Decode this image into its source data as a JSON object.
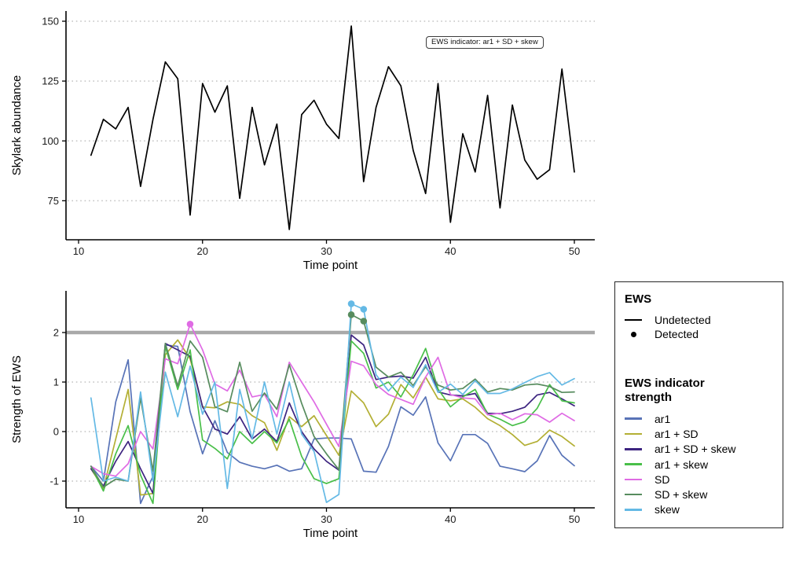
{
  "figure": {
    "background": "#FFFFFF"
  },
  "annotation": {
    "label": "EWS indicator: ar1 + SD + skew"
  },
  "legend": {
    "ews": {
      "title": "EWS",
      "items": [
        {
          "label": "Undetected",
          "swatch": "line",
          "color": "#000000"
        },
        {
          "label": "Detected",
          "swatch": "dot",
          "color": "#000000"
        }
      ]
    },
    "indicator": {
      "title": "EWS indicator strength",
      "items": [
        {
          "label": "ar1",
          "color": "#5873B7"
        },
        {
          "label": "ar1 + SD",
          "color": "#B3AF34"
        },
        {
          "label": "ar1 + SD + skew",
          "color": "#3D2480"
        },
        {
          "label": "ar1 + skew",
          "color": "#49BF49"
        },
        {
          "label": "SD",
          "color": "#DF6BE4"
        },
        {
          "label": "SD + skew",
          "color": "#578C5E"
        },
        {
          "label": "skew",
          "color": "#64B9E5"
        }
      ]
    }
  },
  "styles": {
    "grid_color": "#C3C3C3",
    "axis_color": "#000000",
    "tick_label_color": "#1A1A1A",
    "threshold_color": "#A9A9A9"
  },
  "chart_data": [
    {
      "id": "skylark-abundance",
      "type": "line",
      "title": "",
      "xlabel": "Time point",
      "ylabel": "Skylark abundance",
      "grid": "dotted-horizontal",
      "annotation": "EWS indicator: ar1 + SD + skew",
      "line_color": "#000000",
      "xticks": [
        10,
        20,
        30,
        40,
        50
      ],
      "yticks": [
        75,
        100,
        125,
        150
      ],
      "xlim": [
        9,
        51.5
      ],
      "ylim": [
        61,
        152
      ],
      "x": [
        11,
        12,
        13,
        14,
        15,
        16,
        17,
        18,
        19,
        20,
        21,
        22,
        23,
        24,
        25,
        26,
        27,
        28,
        29,
        30,
        31,
        32,
        33,
        34,
        35,
        36,
        37,
        38,
        39,
        40,
        41,
        42,
        43,
        44,
        45,
        46,
        47,
        48,
        49,
        50
      ],
      "values": [
        94,
        109,
        105,
        114,
        81,
        109,
        133,
        126,
        69,
        124,
        112,
        123,
        76,
        114,
        90,
        107,
        63,
        111,
        117,
        107,
        101,
        148,
        83,
        114,
        131,
        123,
        96,
        78,
        124,
        66,
        103,
        87,
        119,
        72,
        115,
        92,
        84,
        88,
        130,
        87
      ]
    },
    {
      "id": "ews-strength",
      "type": "line",
      "title": "",
      "xlabel": "Time point",
      "ylabel": "Strength of EWS",
      "grid": "dotted-horizontal",
      "threshold": 2,
      "xticks": [
        10,
        20,
        30,
        40,
        50
      ],
      "yticks": [
        -1,
        0,
        1,
        2
      ],
      "xlim": [
        9,
        51.5
      ],
      "ylim": [
        -1.65,
        2.75
      ],
      "x": [
        11,
        12,
        13,
        14,
        15,
        16,
        17,
        18,
        19,
        20,
        21,
        22,
        23,
        24,
        25,
        26,
        27,
        28,
        29,
        30,
        31,
        32,
        33,
        34,
        35,
        36,
        37,
        38,
        39,
        40,
        41,
        42,
        43,
        44,
        45,
        46,
        47,
        48,
        49,
        50
      ],
      "series": [
        {
          "name": "ar1",
          "color": "#5873B7",
          "values": [
            -0.7,
            -1.0,
            0.6,
            1.45,
            -1.45,
            -0.9,
            1.75,
            1.72,
            0.4,
            -0.45,
            0.22,
            -0.42,
            -0.62,
            -0.7,
            -0.75,
            -0.68,
            -0.8,
            -0.75,
            -0.15,
            -0.13,
            -0.13,
            -0.15,
            -0.8,
            -0.82,
            -0.3,
            0.5,
            0.33,
            0.7,
            -0.23,
            -0.59,
            -0.06,
            -0.06,
            -0.24,
            -0.7,
            -0.75,
            -0.81,
            -0.59,
            -0.08,
            -0.48,
            -0.69
          ]
        },
        {
          "name": "ar1 + SD",
          "color": "#B3AF34",
          "values": [
            -0.75,
            -1.15,
            -0.15,
            0.85,
            -1.28,
            -1.25,
            1.55,
            1.85,
            1.47,
            0.5,
            0.48,
            0.6,
            0.55,
            0.32,
            0.18,
            -0.38,
            0.3,
            0.1,
            0.32,
            -0.08,
            -0.48,
            0.82,
            0.58,
            0.1,
            0.35,
            0.95,
            0.68,
            1.1,
            0.66,
            0.62,
            0.66,
            0.49,
            0.26,
            0.12,
            -0.06,
            -0.28,
            -0.2,
            0.03,
            -0.1,
            -0.29
          ]
        },
        {
          "name": "ar1 + SD + skew",
          "color": "#3D2480",
          "values": [
            -0.75,
            -1.1,
            -0.6,
            -0.2,
            -0.75,
            -1.25,
            1.78,
            1.65,
            1.52,
            0.5,
            0.05,
            -0.05,
            0.3,
            -0.15,
            0.05,
            -0.2,
            0.58,
            0.0,
            -0.35,
            -0.6,
            -0.78,
            1.95,
            1.75,
            1.05,
            1.1,
            1.12,
            1.08,
            1.5,
            0.8,
            0.74,
            0.72,
            0.77,
            0.37,
            0.36,
            0.41,
            0.49,
            0.74,
            0.79,
            0.66,
            0.52
          ]
        },
        {
          "name": "ar1 + skew",
          "color": "#49BF49",
          "values": [
            -0.7,
            -1.2,
            -0.45,
            0.12,
            -0.88,
            -1.45,
            1.72,
            0.85,
            1.65,
            -0.17,
            -0.34,
            -0.55,
            0.0,
            -0.24,
            0.0,
            -0.23,
            0.25,
            -0.5,
            -0.95,
            -1.05,
            -0.95,
            1.83,
            1.58,
            0.88,
            1.0,
            0.7,
            1.15,
            1.68,
            0.86,
            0.5,
            0.7,
            0.85,
            0.35,
            0.25,
            0.12,
            0.2,
            0.47,
            0.95,
            0.62,
            0.58
          ]
        },
        {
          "name": "SD",
          "color": "#DF6BE4",
          "values": [
            -0.7,
            -0.85,
            -0.9,
            -0.65,
            0.0,
            -0.35,
            1.47,
            1.37,
            2.17,
            1.65,
            0.96,
            0.82,
            1.24,
            0.7,
            0.75,
            0.3,
            1.4,
            1.0,
            0.6,
            0.15,
            -0.3,
            1.42,
            1.33,
            0.95,
            0.75,
            0.65,
            0.55,
            1.1,
            1.5,
            0.75,
            0.68,
            0.66,
            0.34,
            0.37,
            0.24,
            0.36,
            0.34,
            0.19,
            0.37,
            0.22
          ],
          "detected": [
            [
              19,
              2.17
            ]
          ]
        },
        {
          "name": "SD + skew",
          "color": "#578C5E",
          "values": [
            -0.7,
            -1.12,
            -0.96,
            -1.0,
            0.68,
            -0.8,
            1.78,
            0.92,
            1.83,
            1.5,
            0.5,
            0.4,
            1.4,
            0.41,
            0.78,
            0.45,
            1.35,
            0.57,
            -0.1,
            -0.45,
            -0.77,
            2.36,
            2.23,
            1.3,
            1.1,
            1.2,
            0.93,
            1.31,
            0.94,
            0.84,
            0.87,
            1.06,
            0.8,
            0.87,
            0.84,
            0.94,
            0.96,
            0.91,
            0.79,
            0.8
          ],
          "detected": [
            [
              32,
              2.36
            ],
            [
              33,
              2.23
            ]
          ]
        },
        {
          "name": "skew",
          "color": "#64B9E5",
          "values": [
            0.68,
            -1.0,
            -0.92,
            -1.0,
            0.8,
            -1.0,
            1.2,
            0.3,
            1.32,
            0.35,
            1.0,
            -1.15,
            0.85,
            -0.15,
            1.0,
            -0.05,
            1.0,
            -0.05,
            -0.4,
            -1.43,
            -1.27,
            2.58,
            2.47,
            1.15,
            0.82,
            1.1,
            0.89,
            1.35,
            0.79,
            0.96,
            0.75,
            1.03,
            0.77,
            0.77,
            0.86,
            0.99,
            1.11,
            1.19,
            0.94,
            1.07
          ],
          "detected": [
            [
              32,
              2.58
            ],
            [
              33,
              2.47
            ]
          ]
        }
      ]
    }
  ]
}
